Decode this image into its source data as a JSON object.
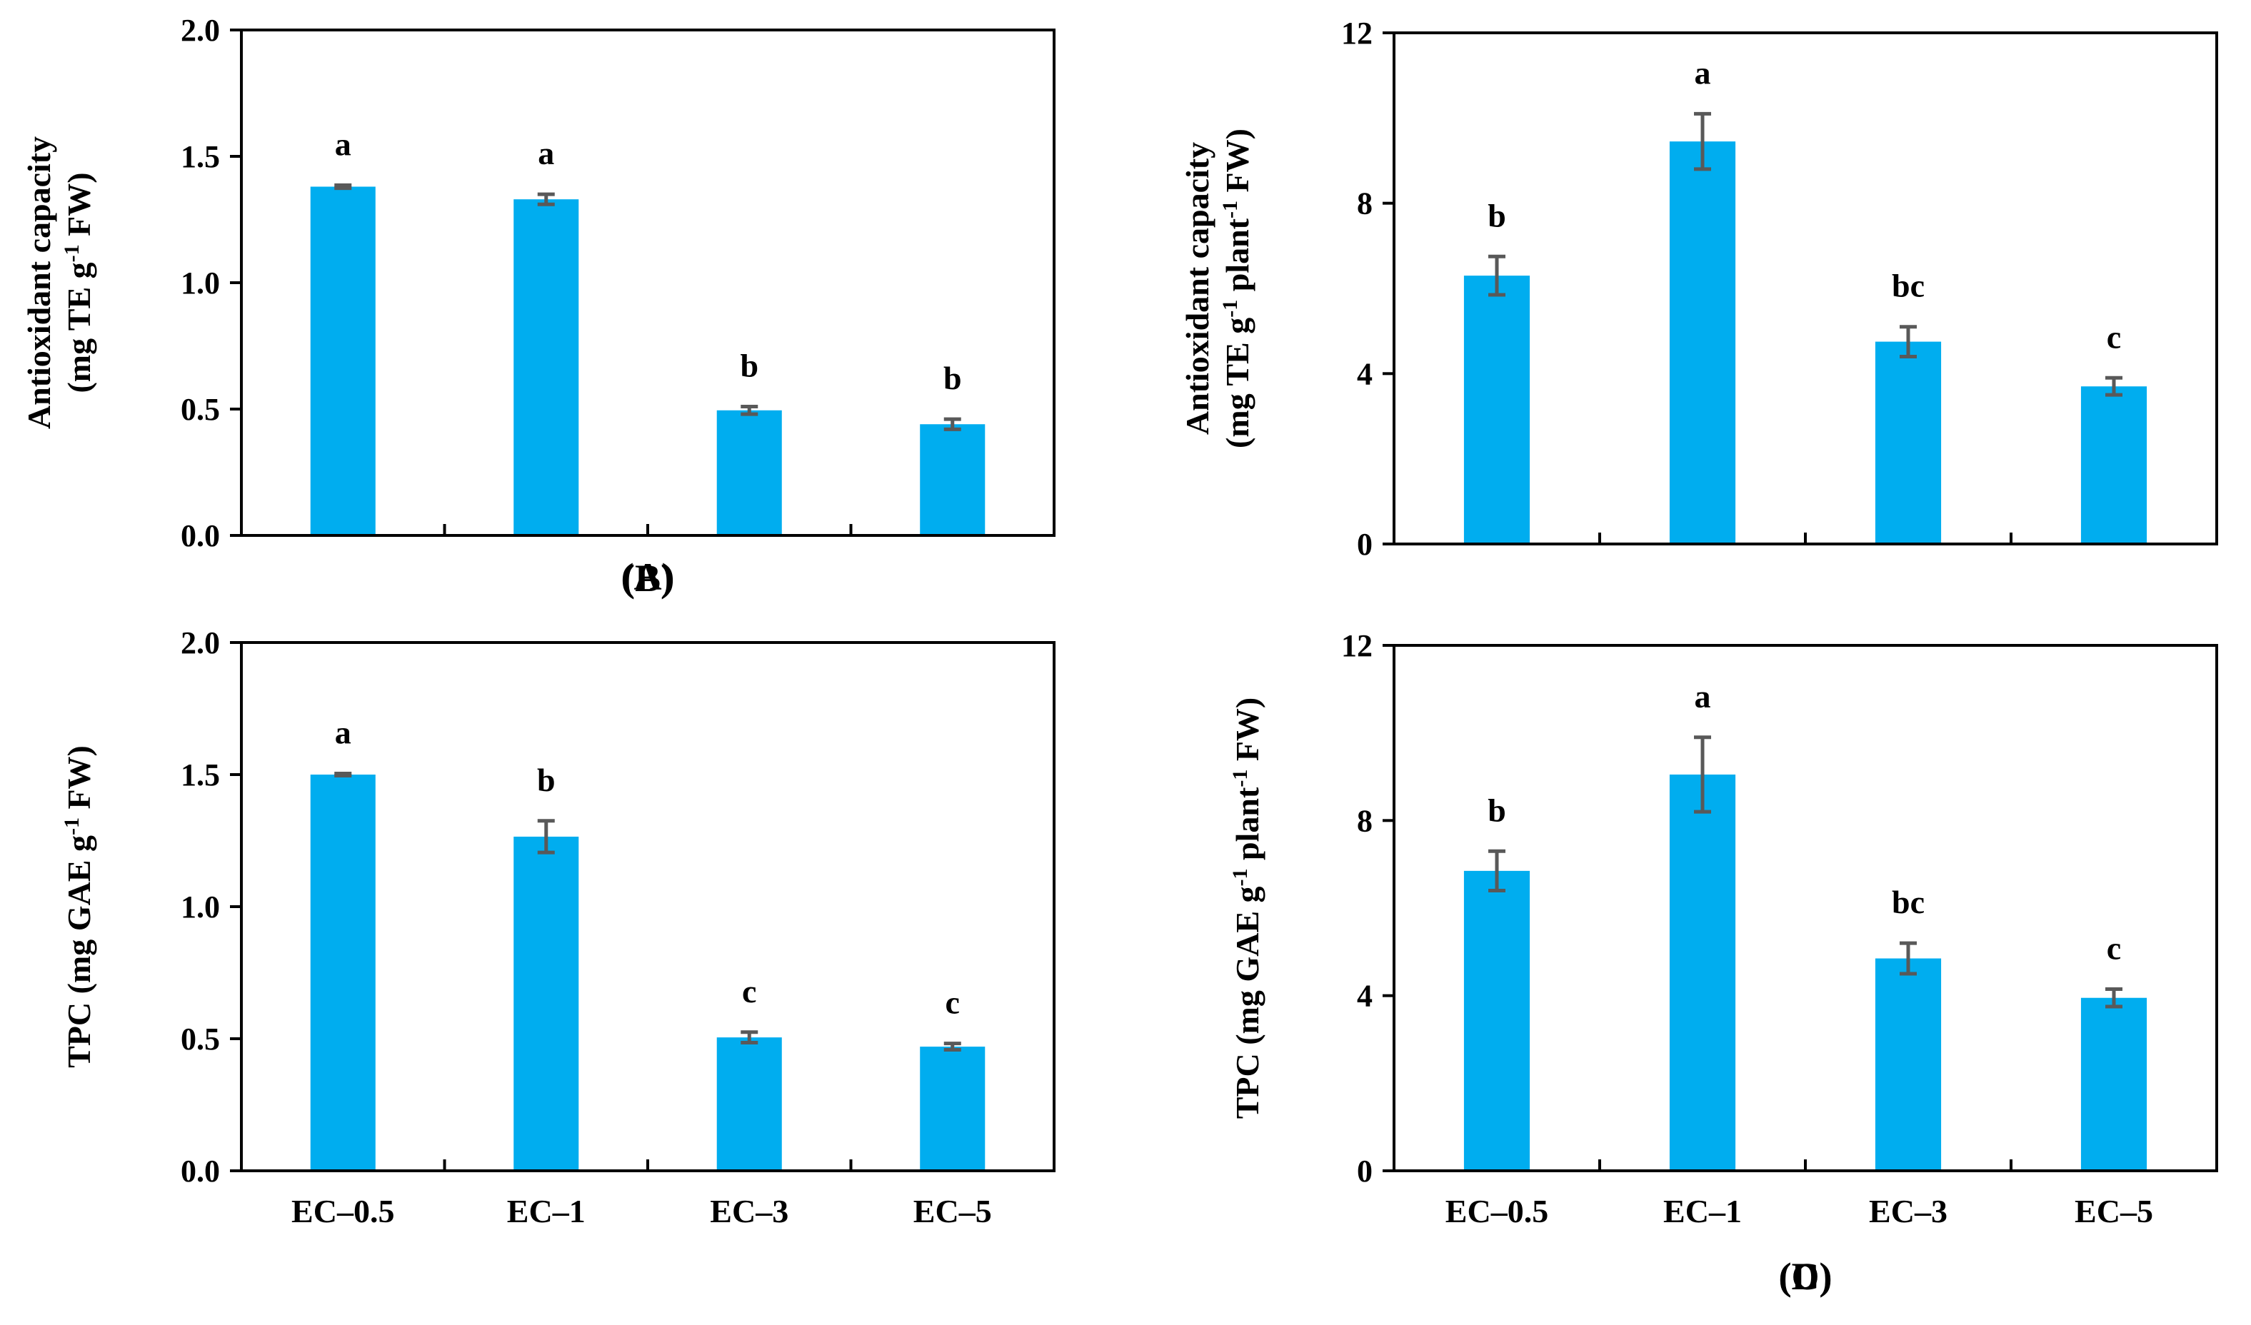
{
  "colors": {
    "bar": "#00adef",
    "error_bar": "#595959",
    "axis": "#000000",
    "text": "#000000"
  },
  "chart_data": [
    {
      "panel": "(A)",
      "type": "bar",
      "categories": [
        "EC–0.5",
        "EC–1",
        "EC–3",
        "EC–5"
      ],
      "show_category_labels": false,
      "values": [
        1.38,
        1.33,
        0.495,
        0.44
      ],
      "errors": [
        0.006,
        0.02,
        0.015,
        0.02
      ],
      "letters": [
        "a",
        "a",
        "b",
        "b"
      ],
      "ylabel_lines": [
        "Antioxidant capacity",
        "(mg TE g-1 FW)"
      ],
      "ylim": [
        0,
        2.0
      ],
      "yticks": [
        "0.0",
        "0.5",
        "1.0",
        "1.5",
        "2.0"
      ],
      "grid": false
    },
    {
      "panel": "(B)",
      "type": "bar",
      "categories": [
        "EC–0.5",
        "EC–1",
        "EC–3",
        "EC–5"
      ],
      "show_category_labels": true,
      "values": [
        1.5,
        1.265,
        0.505,
        0.47
      ],
      "errors": [
        0.004,
        0.06,
        0.02,
        0.012
      ],
      "letters": [
        "a",
        "b",
        "c",
        "c"
      ],
      "ylabel_lines": [
        "TPC (mg GAE g-1 FW)"
      ],
      "ylim": [
        0,
        2.0
      ],
      "yticks": [
        "0.0",
        "0.5",
        "1.0",
        "1.5",
        "2.0"
      ],
      "grid": false
    },
    {
      "panel": "(C)",
      "type": "bar",
      "categories": [
        "EC–0.5",
        "EC–1",
        "EC–3",
        "EC–5"
      ],
      "show_category_labels": false,
      "values": [
        6.3,
        9.45,
        4.75,
        3.7
      ],
      "errors": [
        0.45,
        0.65,
        0.35,
        0.2
      ],
      "letters": [
        "b",
        "a",
        "bc",
        "c"
      ],
      "ylabel_lines": [
        "Antioxidant capacity",
        "(mg TE g-1 plant-1 FW)"
      ],
      "ylim": [
        0,
        12
      ],
      "yticks": [
        "0",
        "4",
        "8",
        "12"
      ],
      "grid": false
    },
    {
      "panel": "(D)",
      "type": "bar",
      "categories": [
        "EC–0.5",
        "EC–1",
        "EC–3",
        "EC–5"
      ],
      "show_category_labels": true,
      "values": [
        6.85,
        9.05,
        4.85,
        3.95
      ],
      "errors": [
        0.45,
        0.85,
        0.35,
        0.2
      ],
      "letters": [
        "b",
        "a",
        "bc",
        "c"
      ],
      "ylabel_lines": [
        "TPC (mg GAE g-1 plant-1 FW)"
      ],
      "ylim": [
        0,
        12
      ],
      "yticks": [
        "0",
        "4",
        "8",
        "12"
      ],
      "grid": false
    }
  ]
}
